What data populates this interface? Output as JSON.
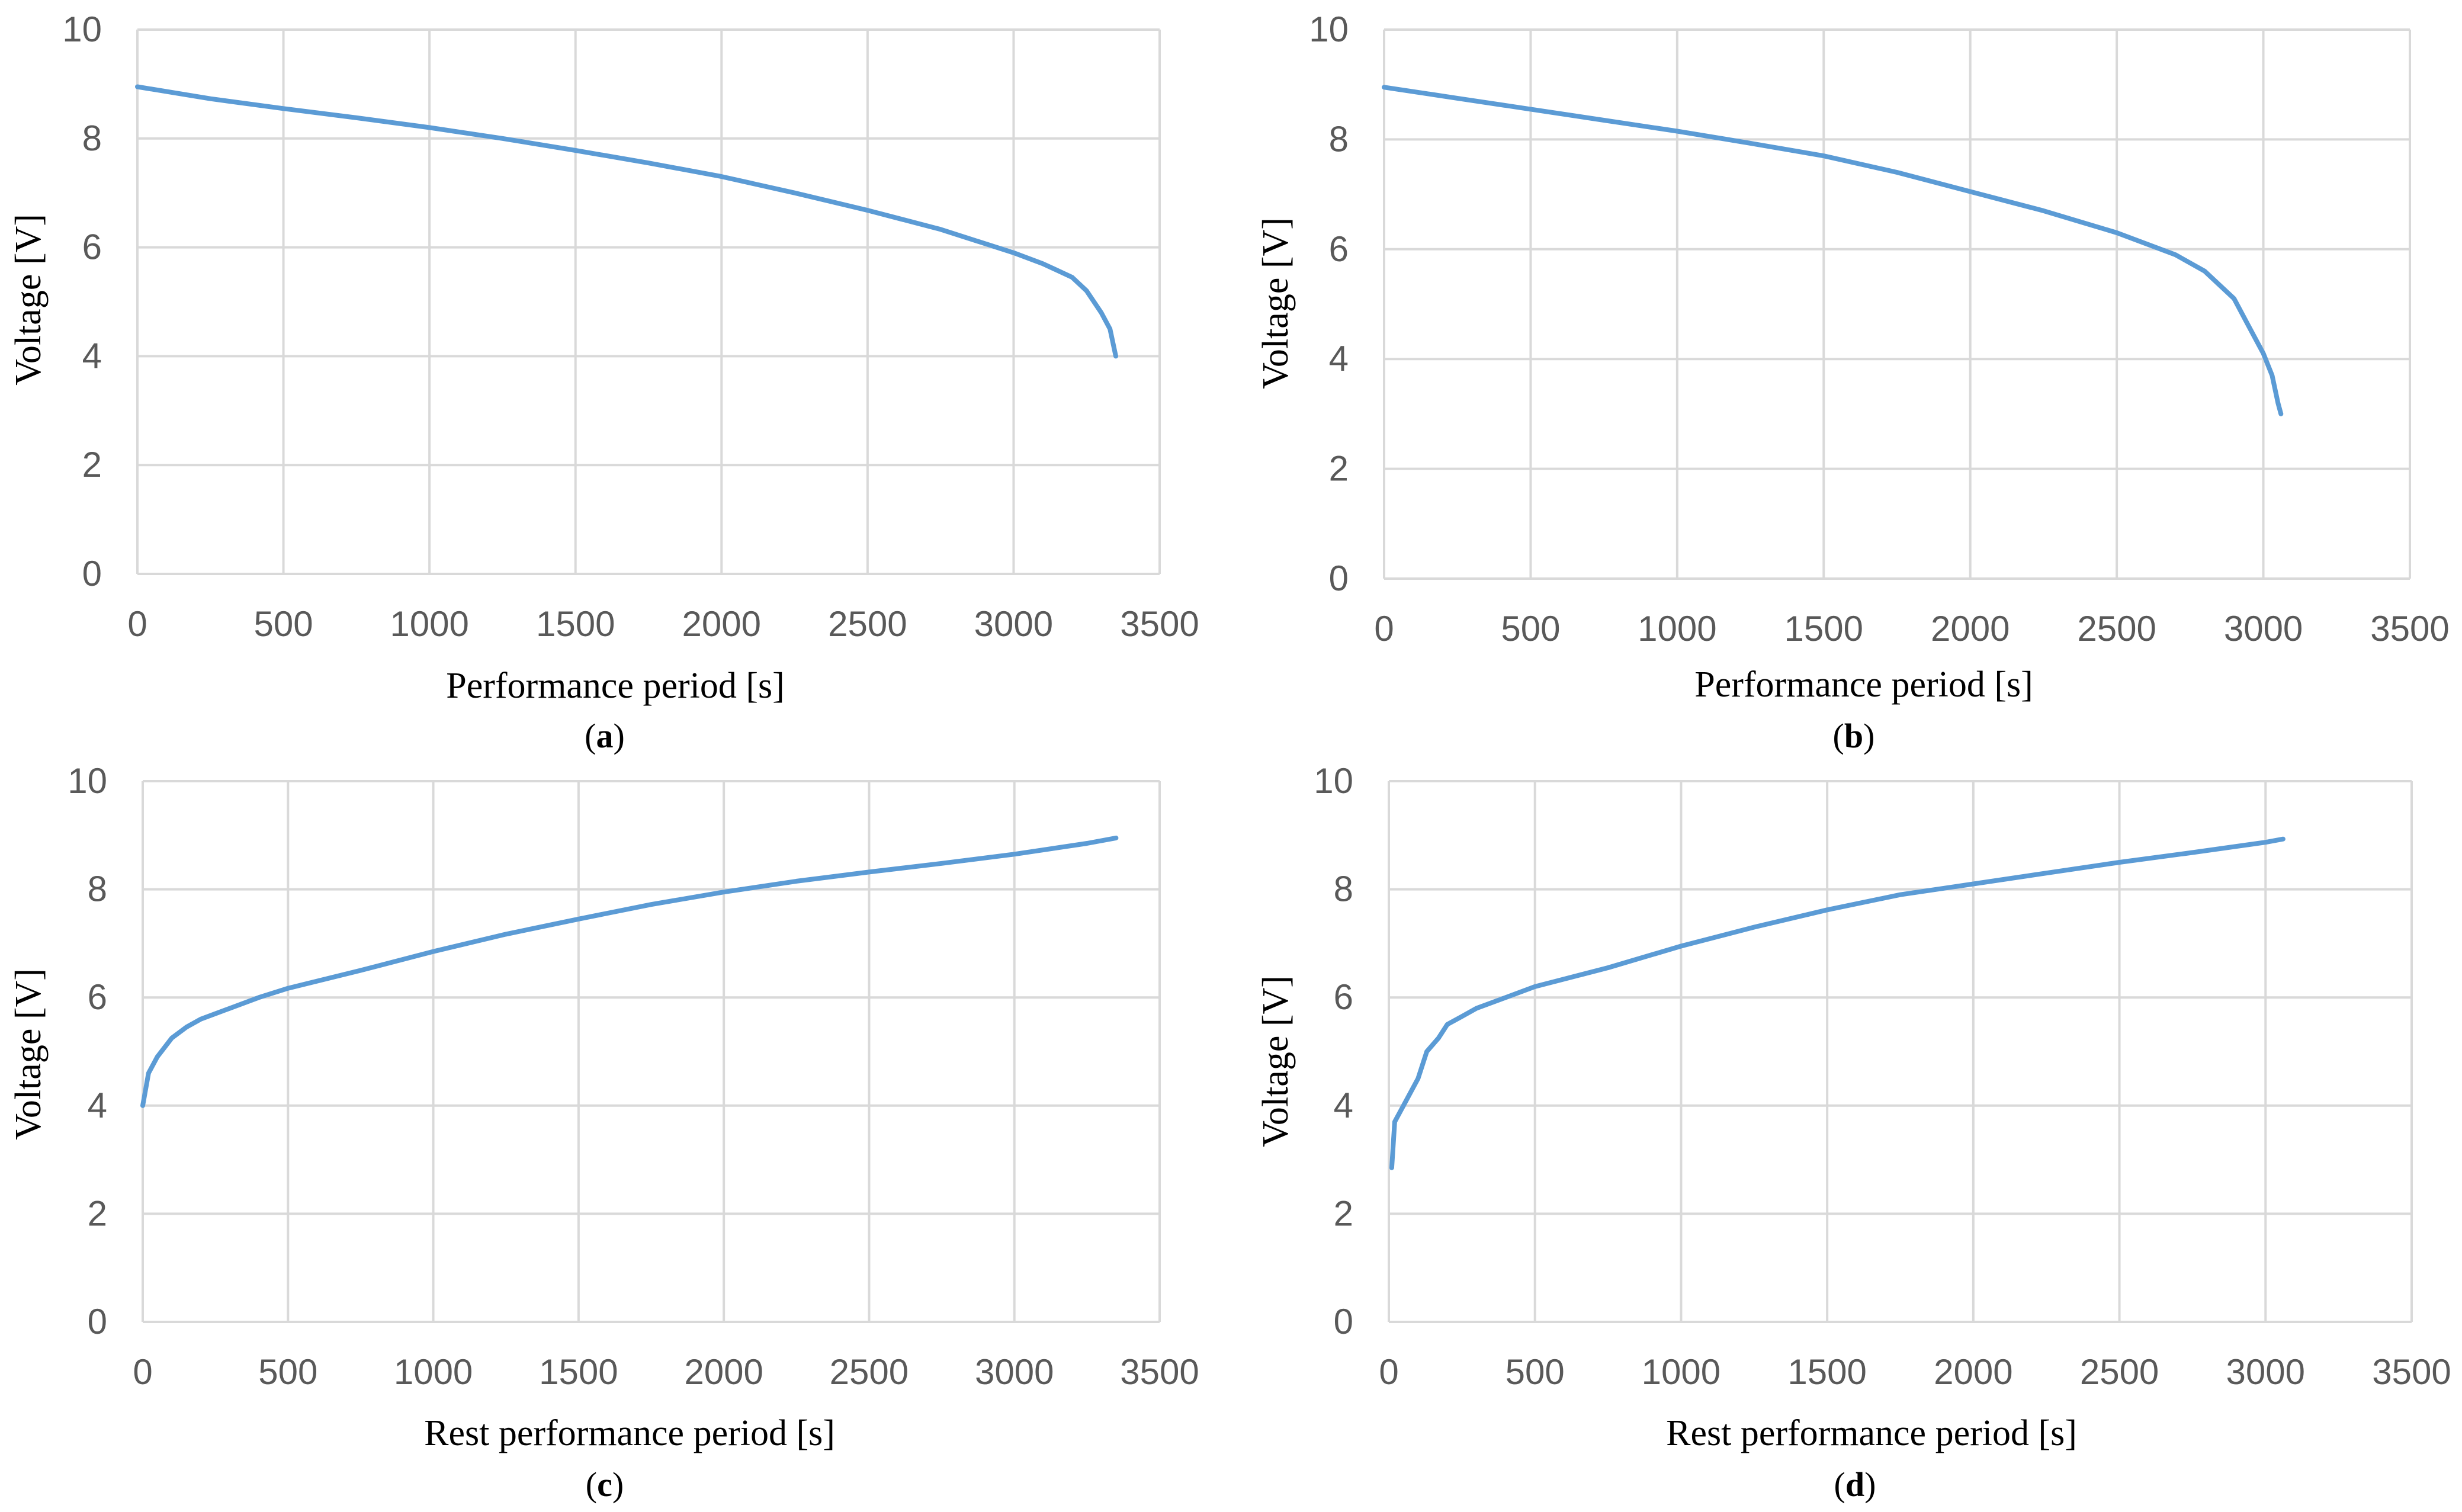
{
  "chart_data": [
    {
      "type": "line",
      "panel_label": "a",
      "title": "",
      "xlabel": "Performance period [s]",
      "ylabel": "Voltage [V]",
      "xlim": [
        0,
        3500
      ],
      "ylim": [
        0,
        10
      ],
      "x_ticks": [
        "0",
        "500",
        "1000",
        "1500",
        "2000",
        "2500",
        "3000",
        "3500"
      ],
      "y_ticks": [
        "0",
        "2",
        "4",
        "6",
        "8",
        "10"
      ],
      "grid": true,
      "series": [
        {
          "name": "Voltage",
          "color": "#5b9bd5",
          "x": [
            0,
            250,
            500,
            750,
            1000,
            1250,
            1500,
            1750,
            2000,
            2250,
            2500,
            2750,
            3000,
            3100,
            3200,
            3250,
            3300,
            3330,
            3350
          ],
          "y": [
            8.95,
            8.73,
            8.55,
            8.38,
            8.2,
            8.0,
            7.78,
            7.55,
            7.3,
            7.0,
            6.68,
            6.33,
            5.9,
            5.7,
            5.45,
            5.2,
            4.8,
            4.5,
            4.0
          ]
        }
      ]
    },
    {
      "type": "line",
      "panel_label": "b",
      "title": "",
      "xlabel": "Performance period [s]",
      "ylabel": "Voltage [V]",
      "xlim": [
        0,
        3500
      ],
      "ylim": [
        0,
        10
      ],
      "x_ticks": [
        "0",
        "500",
        "1000",
        "1500",
        "2000",
        "2500",
        "3000",
        "3500"
      ],
      "y_ticks": [
        "0",
        "2",
        "4",
        "6",
        "8",
        "10"
      ],
      "grid": true,
      "series": [
        {
          "name": "Voltage",
          "color": "#5b9bd5",
          "x": [
            0,
            250,
            500,
            750,
            1000,
            1250,
            1500,
            1750,
            2000,
            2250,
            2500,
            2700,
            2800,
            2900,
            2950,
            3000,
            3030,
            3050,
            3060
          ],
          "y": [
            8.95,
            8.75,
            8.55,
            8.35,
            8.15,
            7.93,
            7.7,
            7.4,
            7.05,
            6.7,
            6.3,
            5.9,
            5.6,
            5.1,
            4.6,
            4.1,
            3.7,
            3.2,
            3.0
          ]
        }
      ]
    },
    {
      "type": "line",
      "panel_label": "c",
      "title": "",
      "xlabel": "Rest performance period [s]",
      "ylabel": "Voltage [V]",
      "xlim": [
        0,
        3500
      ],
      "ylim": [
        0,
        10
      ],
      "x_ticks": [
        "0",
        "500",
        "1000",
        "1500",
        "2000",
        "2500",
        "3000",
        "3500"
      ],
      "y_ticks": [
        "0",
        "2",
        "4",
        "6",
        "8",
        "10"
      ],
      "grid": true,
      "series": [
        {
          "name": "Voltage",
          "color": "#5b9bd5",
          "x": [
            0,
            20,
            50,
            100,
            150,
            200,
            250,
            300,
            400,
            500,
            750,
            1000,
            1250,
            1500,
            1750,
            2000,
            2250,
            2500,
            2750,
            3000,
            3250,
            3350
          ],
          "y": [
            4.0,
            4.6,
            4.9,
            5.25,
            5.45,
            5.6,
            5.7,
            5.8,
            6.0,
            6.17,
            6.5,
            6.85,
            7.17,
            7.45,
            7.72,
            7.95,
            8.15,
            8.32,
            8.48,
            8.65,
            8.85,
            8.95
          ]
        }
      ]
    },
    {
      "type": "line",
      "panel_label": "d",
      "title": "",
      "xlabel": "Rest performance period [s]",
      "ylabel": "Voltage [V]",
      "xlim": [
        0,
        3500
      ],
      "ylim": [
        0,
        10
      ],
      "x_ticks": [
        "0",
        "500",
        "1000",
        "1500",
        "2000",
        "2500",
        "3000",
        "3500"
      ],
      "y_ticks": [
        "0",
        "2",
        "4",
        "6",
        "8",
        "10"
      ],
      "grid": true,
      "series": [
        {
          "name": "Voltage",
          "color": "#5b9bd5",
          "x": [
            10,
            20,
            50,
            100,
            130,
            170,
            200,
            250,
            300,
            400,
            500,
            750,
            1000,
            1250,
            1500,
            1750,
            2000,
            2250,
            2500,
            2750,
            3000,
            3060
          ],
          "y": [
            2.85,
            3.7,
            4.0,
            4.5,
            5.0,
            5.25,
            5.5,
            5.65,
            5.8,
            6.0,
            6.2,
            6.55,
            6.95,
            7.3,
            7.62,
            7.9,
            8.1,
            8.3,
            8.5,
            8.68,
            8.87,
            8.93
          ]
        }
      ]
    }
  ]
}
